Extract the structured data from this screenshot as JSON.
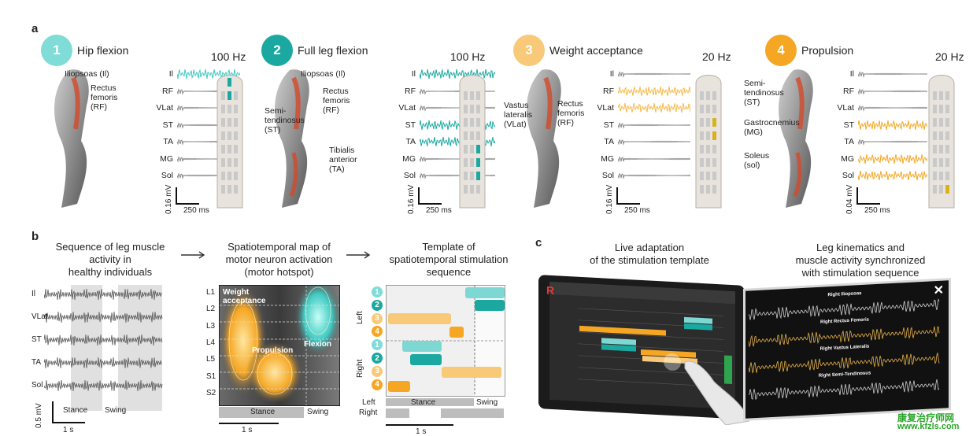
{
  "panel_letters": {
    "a": "a",
    "b": "b",
    "c": "c"
  },
  "colors": {
    "teal": "#3ec9c2",
    "orange": "#f5a623",
    "light_orange": "#f7c978",
    "gray": "#8c8c8c"
  },
  "phases": [
    {
      "num": "1",
      "title": "Hip flexion",
      "freq": "100 Hz",
      "anatomy": [
        "Iliopsoas (Il)",
        "Rectus\nfemoris\n(RF)"
      ],
      "muscles": [
        "Il",
        "RF",
        "VLat",
        "ST",
        "TA",
        "MG",
        "Sol"
      ],
      "scale_v": "0.16 mV",
      "scale_t": "250 ms"
    },
    {
      "num": "2",
      "title": "Full leg flexion",
      "freq": "100 Hz",
      "anatomy": [
        "Iliopsoas (Il)",
        "Rectus\nfemoris\n(RF)",
        "Semi-\ntendinosus\n(ST)",
        "Tibialis\nanterior\n(TA)"
      ],
      "muscles": [
        "Il",
        "RF",
        "VLat",
        "ST",
        "TA",
        "MG",
        "Sol"
      ],
      "scale_v": "0.16 mV",
      "scale_t": "250 ms"
    },
    {
      "num": "3",
      "title": "Weight acceptance",
      "freq": "20 Hz",
      "anatomy": [
        "Vastus\nlateralis\n(VLat)",
        "Rectus\nfemoris\n(RF)"
      ],
      "muscles": [
        "Il",
        "RF",
        "VLat",
        "ST",
        "TA",
        "MG",
        "Sol"
      ],
      "scale_v": "0.16 mV",
      "scale_t": "250 ms"
    },
    {
      "num": "4",
      "title": "Propulsion",
      "freq": "20 Hz",
      "anatomy": [
        "Semi-\ntendinosus\n(ST)",
        "Gastrocnemius\n(MG)",
        "Soleus\n(sol)"
      ],
      "muscles": [
        "Il",
        "RF",
        "VLat",
        "ST",
        "TA",
        "MG",
        "Sol"
      ],
      "scale_v": "0.04 mV",
      "scale_t": "250 ms"
    }
  ],
  "b": {
    "heading1": "Sequence of leg muscle\nactivity in\nhealthy individuals",
    "heading2": "Spatiotemporal map of\nmotor neuron activation\n(motor hotspot)",
    "heading3": "Template of\nspatiotemporal stimulation\nsequence",
    "emg_muscles": [
      "Il",
      "VLat",
      "ST",
      "TA",
      "Sol"
    ],
    "stance": "Stance",
    "swing": "Swing",
    "scale_v": "0.5 mV",
    "scale_t": "1 s",
    "levels": [
      "L1",
      "L2",
      "L3",
      "L4",
      "L5",
      "S1",
      "S2"
    ],
    "map_labels": {
      "weight": "Weight\nacceptance",
      "propulsion": "Propulsion",
      "flexion": "Flexion"
    },
    "template_side": {
      "left": "Left",
      "right": "Right"
    },
    "template_nums": [
      "1",
      "2",
      "3",
      "4",
      "1",
      "2",
      "3",
      "4"
    ],
    "gait": {
      "left": "Left",
      "right": "Right",
      "stance": "Stance",
      "swing": "Swing"
    },
    "scale_t2": "1 s",
    "scale_t3": "1 s"
  },
  "c": {
    "heading1": "Live adaptation\nof the stimulation template",
    "heading2": "Leg kinematics and\nmuscle activity synchronized\nwith stimulation sequence",
    "traces": [
      "Right Iliopsoas",
      "Right Rectus Femoris",
      "Right Vastus Lateralis",
      "Right Semi-Tendinosus"
    ]
  },
  "watermark": [
    "康复治疗师网",
    "www.kfzls.com"
  ]
}
